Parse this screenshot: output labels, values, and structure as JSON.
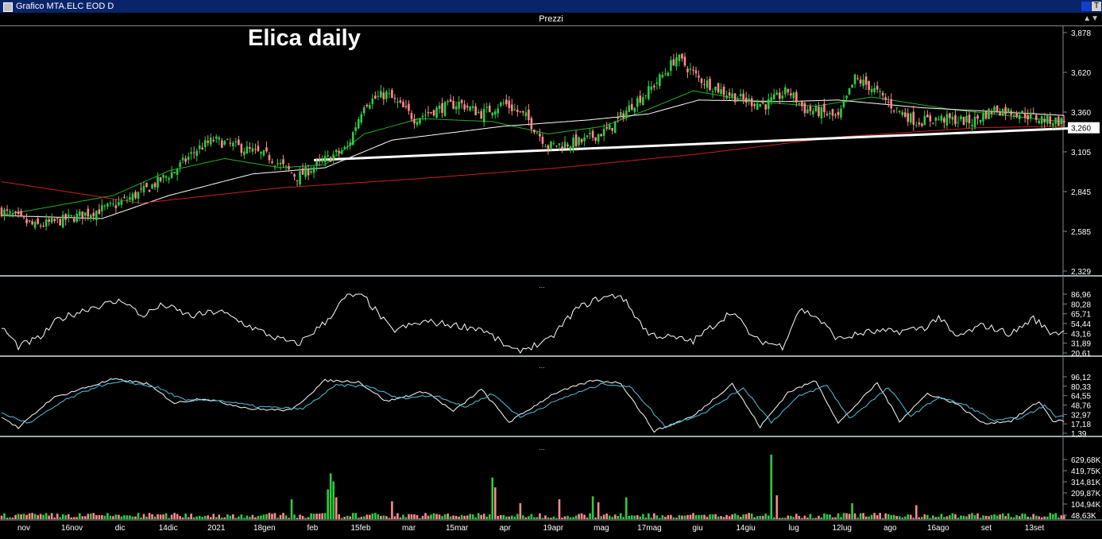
{
  "window": {
    "title": "Grafico MTA.ELC EOD D",
    "panel_title": "Prezzi",
    "corner_label": "T"
  },
  "colors": {
    "background": "#000000",
    "up_candle": "#2ecc40",
    "down_candle": "#ff8a8a",
    "ma_fast": "#22b022",
    "ma_slow": "#ffffff",
    "ma_long": "#cc2020",
    "stoch_k": "#ffffff",
    "stoch_d": "#4fc3e0",
    "trendline": "#ffffff"
  },
  "chart_data": [
    {
      "type": "candlestick",
      "title": "Elica daily",
      "ylim": [
        2.329,
        3.878
      ],
      "yticks": [
        "3,878",
        "3,620",
        "3,360",
        "3,105",
        "2,845",
        "2,585",
        "2,329"
      ],
      "last_price_label": "3,260",
      "last_price": 3.26,
      "close_anchors": [
        [
          0,
          2.72
        ],
        [
          12,
          2.62
        ],
        [
          22,
          2.66
        ],
        [
          40,
          2.75
        ],
        [
          52,
          2.86
        ],
        [
          62,
          2.98
        ],
        [
          70,
          3.12
        ],
        [
          76,
          3.18
        ],
        [
          84,
          3.14
        ],
        [
          96,
          3.07
        ],
        [
          106,
          2.94
        ],
        [
          116,
          3.05
        ],
        [
          124,
          3.13
        ],
        [
          130,
          3.42
        ],
        [
          138,
          3.48
        ],
        [
          148,
          3.32
        ],
        [
          156,
          3.38
        ],
        [
          164,
          3.42
        ],
        [
          172,
          3.35
        ],
        [
          180,
          3.42
        ],
        [
          188,
          3.33
        ],
        [
          196,
          3.14
        ],
        [
          208,
          3.17
        ],
        [
          218,
          3.25
        ],
        [
          226,
          3.41
        ],
        [
          232,
          3.5
        ],
        [
          238,
          3.62
        ],
        [
          242,
          3.72
        ],
        [
          250,
          3.58
        ],
        [
          258,
          3.5
        ],
        [
          266,
          3.44
        ],
        [
          274,
          3.41
        ],
        [
          282,
          3.5
        ],
        [
          288,
          3.38
        ],
        [
          294,
          3.36
        ],
        [
          300,
          3.32
        ],
        [
          306,
          3.58
        ],
        [
          312,
          3.52
        ],
        [
          320,
          3.39
        ],
        [
          328,
          3.3
        ],
        [
          336,
          3.32
        ],
        [
          348,
          3.3
        ],
        [
          356,
          3.38
        ],
        [
          364,
          3.36
        ],
        [
          372,
          3.32
        ],
        [
          380,
          3.3
        ]
      ],
      "moving_averages": [
        {
          "name": "ma_fast",
          "anchors": [
            [
              0,
              2.69
            ],
            [
              40,
              2.82
            ],
            [
              60,
              2.98
            ],
            [
              80,
              3.06
            ],
            [
              100,
              3.0
            ],
            [
              116,
              3.02
            ],
            [
              130,
              3.22
            ],
            [
              150,
              3.32
            ],
            [
              176,
              3.3
            ],
            [
              196,
              3.22
            ],
            [
              216,
              3.27
            ],
            [
              232,
              3.38
            ],
            [
              248,
              3.5
            ],
            [
              270,
              3.43
            ],
            [
              292,
              3.4
            ],
            [
              312,
              3.46
            ],
            [
              340,
              3.38
            ],
            [
              380,
              3.3
            ]
          ]
        },
        {
          "name": "ma_slow",
          "anchors": [
            [
              0,
              2.69
            ],
            [
              36,
              2.67
            ],
            [
              60,
              2.82
            ],
            [
              90,
              2.96
            ],
            [
              116,
              3.0
            ],
            [
              140,
              3.18
            ],
            [
              180,
              3.27
            ],
            [
              210,
              3.31
            ],
            [
              232,
              3.35
            ],
            [
              250,
              3.44
            ],
            [
              280,
              3.43
            ],
            [
              300,
              3.44
            ],
            [
              330,
              3.39
            ],
            [
              381,
              3.34
            ]
          ]
        },
        {
          "name": "ma_long",
          "anchors": [
            [
              0,
              2.91
            ],
            [
              50,
              2.77
            ],
            [
              100,
              2.87
            ],
            [
              150,
              2.93
            ],
            [
              200,
              3.0
            ],
            [
              250,
              3.09
            ],
            [
              300,
              3.2
            ],
            [
              350,
              3.26
            ],
            [
              381,
              3.27
            ]
          ]
        }
      ],
      "trendline": {
        "from": [
          112,
          3.05
        ],
        "to": [
          388,
          3.26
        ]
      },
      "xticks": [
        "nov",
        "16nov",
        "dic",
        "14dic",
        "2021",
        "18gen",
        "feb",
        "15feb",
        "mar",
        "15mar",
        "apr",
        "19apr",
        "mag",
        "17mag",
        "giu",
        "14giu",
        "lug",
        "12lug",
        "ago",
        "16ago",
        "set",
        "13set"
      ]
    },
    {
      "type": "line",
      "name": "oscillator",
      "ylim": [
        20.61,
        86.96
      ],
      "yticks": [
        "86,96",
        "80,28",
        "65,71",
        "54,44",
        "43,16",
        "31,89",
        "20,61"
      ],
      "anchors": [
        [
          0,
          50
        ],
        [
          6,
          28
        ],
        [
          14,
          38
        ],
        [
          20,
          58
        ],
        [
          32,
          72
        ],
        [
          44,
          80
        ],
        [
          50,
          62
        ],
        [
          58,
          75
        ],
        [
          68,
          62
        ],
        [
          78,
          68
        ],
        [
          88,
          52
        ],
        [
          98,
          38
        ],
        [
          106,
          30
        ],
        [
          116,
          55
        ],
        [
          124,
          86
        ],
        [
          130,
          84
        ],
        [
          140,
          46
        ],
        [
          152,
          56
        ],
        [
          162,
          52
        ],
        [
          172,
          48
        ],
        [
          184,
          22
        ],
        [
          196,
          34
        ],
        [
          206,
          70
        ],
        [
          214,
          82
        ],
        [
          222,
          86
        ],
        [
          232,
          42
        ],
        [
          248,
          34
        ],
        [
          262,
          68
        ],
        [
          270,
          36
        ],
        [
          280,
          28
        ],
        [
          286,
          70
        ],
        [
          292,
          62
        ],
        [
          300,
          36
        ],
        [
          310,
          44
        ],
        [
          322,
          45
        ],
        [
          332,
          50
        ],
        [
          336,
          62
        ],
        [
          342,
          38
        ],
        [
          352,
          52
        ],
        [
          362,
          42
        ],
        [
          370,
          60
        ],
        [
          376,
          44
        ]
      ]
    },
    {
      "type": "line",
      "name": "stochastic",
      "ylim": [
        1.39,
        96.12
      ],
      "yticks": [
        "96,12",
        "80,33",
        "64,55",
        "48,76",
        "32,97",
        "17,18",
        "1,39"
      ],
      "series": [
        {
          "name": "%K",
          "anchors": [
            [
              0,
              30
            ],
            [
              6,
              10
            ],
            [
              18,
              60
            ],
            [
              28,
              75
            ],
            [
              40,
              92
            ],
            [
              52,
              85
            ],
            [
              62,
              52
            ],
            [
              72,
              60
            ],
            [
              90,
              42
            ],
            [
              104,
              40
            ],
            [
              116,
              90
            ],
            [
              128,
              88
            ],
            [
              138,
              55
            ],
            [
              152,
              72
            ],
            [
              162,
              38
            ],
            [
              172,
              75
            ],
            [
              182,
              20
            ],
            [
              198,
              68
            ],
            [
              212,
              90
            ],
            [
              222,
              86
            ],
            [
              234,
              5
            ],
            [
              248,
              30
            ],
            [
              262,
              85
            ],
            [
              272,
              12
            ],
            [
              282,
              70
            ],
            [
              292,
              90
            ],
            [
              300,
              18
            ],
            [
              314,
              86
            ],
            [
              322,
              22
            ],
            [
              332,
              68
            ],
            [
              342,
              52
            ],
            [
              352,
              18
            ],
            [
              362,
              22
            ],
            [
              372,
              55
            ],
            [
              377,
              22
            ]
          ]
        },
        {
          "name": "%D",
          "anchors": [
            [
              0,
              35
            ],
            [
              10,
              18
            ],
            [
              22,
              55
            ],
            [
              34,
              80
            ],
            [
              44,
              88
            ],
            [
              56,
              78
            ],
            [
              66,
              56
            ],
            [
              76,
              58
            ],
            [
              92,
              46
            ],
            [
              108,
              42
            ],
            [
              120,
              82
            ],
            [
              132,
              80
            ],
            [
              142,
              60
            ],
            [
              156,
              65
            ],
            [
              166,
              45
            ],
            [
              176,
              68
            ],
            [
              186,
              28
            ],
            [
              202,
              62
            ],
            [
              216,
              85
            ],
            [
              226,
              78
            ],
            [
              238,
              12
            ],
            [
              252,
              36
            ],
            [
              266,
              78
            ],
            [
              276,
              20
            ],
            [
              286,
              64
            ],
            [
              296,
              82
            ],
            [
              304,
              26
            ],
            [
              318,
              78
            ],
            [
              326,
              30
            ],
            [
              336,
              62
            ],
            [
              346,
              48
            ],
            [
              356,
              22
            ],
            [
              366,
              28
            ],
            [
              374,
              48
            ],
            [
              378,
              30
            ]
          ]
        }
      ]
    },
    {
      "type": "bar",
      "name": "volume",
      "ylim": [
        48630,
        629680
      ],
      "yticks": [
        "629,68K",
        "419,75K",
        "314,81K",
        "209,87K",
        "104,94K",
        "48,63K"
      ],
      "base": 28000,
      "spikes": [
        [
          104,
          200
        ],
        [
          117,
          300
        ],
        [
          118,
          460
        ],
        [
          119,
          380
        ],
        [
          120,
          220
        ],
        [
          140,
          180
        ],
        [
          176,
          420
        ],
        [
          177,
          320
        ],
        [
          186,
          160
        ],
        [
          200,
          200
        ],
        [
          212,
          230
        ],
        [
          214,
          170
        ],
        [
          224,
          220
        ],
        [
          276,
          650
        ],
        [
          278,
          240
        ],
        [
          305,
          160
        ],
        [
          328,
          140
        ]
      ]
    }
  ]
}
